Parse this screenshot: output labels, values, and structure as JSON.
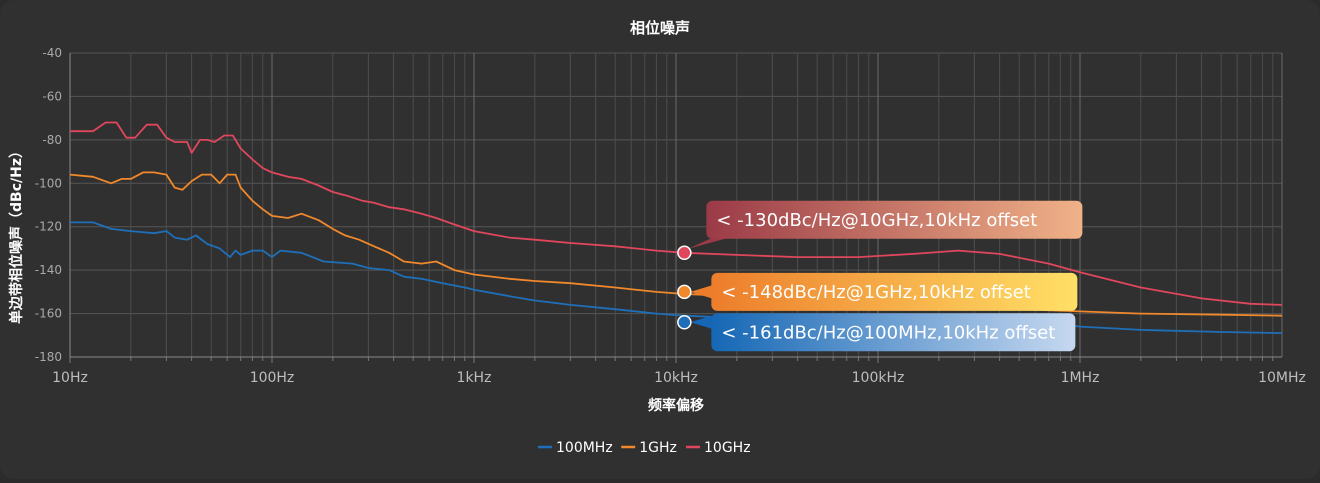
{
  "chart_data": {
    "type": "line",
    "title": "相位噪声",
    "xlabel": "频率偏移",
    "ylabel": "单边带相位噪声（dBc/Hz）",
    "xscale": "log",
    "xlim": [
      10,
      10000000
    ],
    "ylim": [
      -180,
      -40
    ],
    "xticks": [
      10,
      100,
      1000,
      10000,
      100000,
      1000000,
      10000000
    ],
    "xtick_labels": [
      "10Hz",
      "100Hz",
      "1kHz",
      "10kHz",
      "100kHz",
      "1MHz",
      "10MHz"
    ],
    "yticks": [
      -40,
      -60,
      -80,
      -100,
      -120,
      -140,
      -160,
      -180
    ],
    "grid": true,
    "legend_position": "bottom",
    "series": [
      {
        "name": "100MHz",
        "color": "#1f6fb8",
        "points": [
          [
            10,
            -118
          ],
          [
            13,
            -118
          ],
          [
            16,
            -121
          ],
          [
            20,
            -122
          ],
          [
            26,
            -123
          ],
          [
            30,
            -122
          ],
          [
            33,
            -125
          ],
          [
            38,
            -126
          ],
          [
            42,
            -124
          ],
          [
            48,
            -128
          ],
          [
            55,
            -130
          ],
          [
            62,
            -134
          ],
          [
            66,
            -131
          ],
          [
            70,
            -133
          ],
          [
            80,
            -131
          ],
          [
            90,
            -131
          ],
          [
            100,
            -134
          ],
          [
            110,
            -131
          ],
          [
            140,
            -132
          ],
          [
            180,
            -136
          ],
          [
            250,
            -137
          ],
          [
            300,
            -139
          ],
          [
            380,
            -140
          ],
          [
            450,
            -143
          ],
          [
            550,
            -144
          ],
          [
            700,
            -146
          ],
          [
            900,
            -148
          ],
          [
            1000,
            -149
          ],
          [
            1500,
            -152
          ],
          [
            2000,
            -154
          ],
          [
            3000,
            -156
          ],
          [
            5000,
            -158
          ],
          [
            8000,
            -160
          ],
          [
            11000,
            -161
          ],
          [
            20000,
            -162
          ],
          [
            50000,
            -163
          ],
          [
            100000,
            -163
          ],
          [
            200000,
            -163.5
          ],
          [
            500000,
            -164
          ],
          [
            800000,
            -165
          ],
          [
            1000000,
            -166
          ],
          [
            2000000,
            -167.5
          ],
          [
            5000000,
            -168.5
          ],
          [
            10000000,
            -169
          ]
        ]
      },
      {
        "name": "1GHz",
        "color": "#f0882c",
        "points": [
          [
            10,
            -96
          ],
          [
            13,
            -97
          ],
          [
            16,
            -100
          ],
          [
            18,
            -98
          ],
          [
            20,
            -98
          ],
          [
            23,
            -95
          ],
          [
            26,
            -95
          ],
          [
            30,
            -96
          ],
          [
            33,
            -102
          ],
          [
            36,
            -103
          ],
          [
            40,
            -99
          ],
          [
            45,
            -96
          ],
          [
            50,
            -96
          ],
          [
            55,
            -100
          ],
          [
            60,
            -96
          ],
          [
            66,
            -96
          ],
          [
            70,
            -102
          ],
          [
            80,
            -108
          ],
          [
            90,
            -112
          ],
          [
            100,
            -115
          ],
          [
            120,
            -116
          ],
          [
            140,
            -114
          ],
          [
            170,
            -117
          ],
          [
            200,
            -121
          ],
          [
            230,
            -124
          ],
          [
            270,
            -126
          ],
          [
            320,
            -129
          ],
          [
            380,
            -132
          ],
          [
            450,
            -136
          ],
          [
            550,
            -137
          ],
          [
            650,
            -136
          ],
          [
            800,
            -140
          ],
          [
            1000,
            -142
          ],
          [
            1500,
            -144
          ],
          [
            2000,
            -145
          ],
          [
            3000,
            -146
          ],
          [
            5000,
            -148
          ],
          [
            8000,
            -150
          ],
          [
            11000,
            -151
          ],
          [
            20000,
            -152
          ],
          [
            50000,
            -154
          ],
          [
            100000,
            -156
          ],
          [
            200000,
            -157
          ],
          [
            500000,
            -158
          ],
          [
            1000000,
            -159
          ],
          [
            2000000,
            -160
          ],
          [
            5000000,
            -160.5
          ],
          [
            10000000,
            -161
          ]
        ]
      },
      {
        "name": "10GHz",
        "color": "#e0475c",
        "points": [
          [
            10,
            -76
          ],
          [
            13,
            -76
          ],
          [
            15,
            -72
          ],
          [
            17,
            -72
          ],
          [
            19,
            -79
          ],
          [
            21,
            -79
          ],
          [
            24,
            -73
          ],
          [
            27,
            -73
          ],
          [
            30,
            -79
          ],
          [
            33,
            -81
          ],
          [
            38,
            -81
          ],
          [
            40,
            -86
          ],
          [
            44,
            -80
          ],
          [
            48,
            -80
          ],
          [
            52,
            -81
          ],
          [
            58,
            -78
          ],
          [
            64,
            -78
          ],
          [
            70,
            -84
          ],
          [
            80,
            -89
          ],
          [
            90,
            -93
          ],
          [
            100,
            -95
          ],
          [
            120,
            -97
          ],
          [
            140,
            -98
          ],
          [
            170,
            -101
          ],
          [
            200,
            -104
          ],
          [
            240,
            -106
          ],
          [
            280,
            -108
          ],
          [
            320,
            -109
          ],
          [
            380,
            -111
          ],
          [
            450,
            -112
          ],
          [
            550,
            -114
          ],
          [
            650,
            -116
          ],
          [
            800,
            -119
          ],
          [
            1000,
            -122
          ],
          [
            1500,
            -125
          ],
          [
            2000,
            -126
          ],
          [
            3000,
            -127.5
          ],
          [
            5000,
            -129
          ],
          [
            8000,
            -131
          ],
          [
            11000,
            -132
          ],
          [
            20000,
            -133
          ],
          [
            40000,
            -134
          ],
          [
            80000,
            -134
          ],
          [
            150000,
            -132.5
          ],
          [
            250000,
            -131
          ],
          [
            400000,
            -132.5
          ],
          [
            700000,
            -137
          ],
          [
            1000000,
            -141
          ],
          [
            2000000,
            -148
          ],
          [
            4000000,
            -153
          ],
          [
            7000000,
            -155.5
          ],
          [
            10000000,
            -156
          ]
        ]
      }
    ],
    "annotations": [
      {
        "series": "10GHz",
        "x": 11000,
        "y": -132,
        "text": "< -130dBc/Hz@10GHz,10kHz offset",
        "c1": "#9b3a47",
        "c2": "#f0b288"
      },
      {
        "series": "1GHz",
        "x": 11000,
        "y": -150,
        "text": "< -148dBc/Hz@1GHz,10kHz offset",
        "c1": "#ed7d2b",
        "c2": "#ffe066"
      },
      {
        "series": "100MHz",
        "x": 11000,
        "y": -164,
        "text": "< -161dBc/Hz@100MHz,10kHz offset",
        "c1": "#1567b5",
        "c2": "#c6d8f0"
      }
    ]
  }
}
